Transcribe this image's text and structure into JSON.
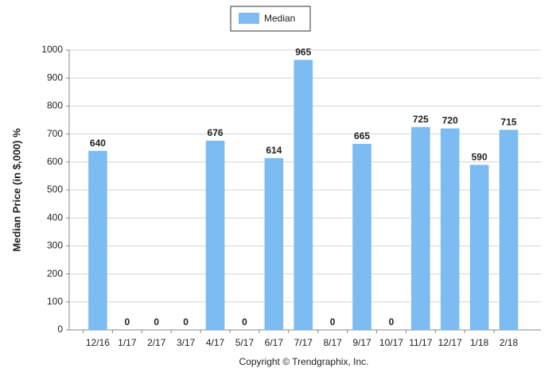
{
  "chart_data": {
    "type": "bar",
    "y_label": "Median Price (in $,000) %",
    "source": "Copyright © Trendgraphix, Inc.",
    "categories": [
      "12/16",
      "1/17",
      "2/17",
      "3/17",
      "4/17",
      "5/17",
      "6/17",
      "7/17",
      "8/17",
      "9/17",
      "10/17",
      "11/17",
      "12/17",
      "1/18",
      "2/18"
    ],
    "series": [
      {
        "name": "Median",
        "color": "#7cbcf2",
        "values": [
          640,
          0,
          0,
          0,
          676,
          0,
          614,
          965,
          0,
          665,
          0,
          725,
          720,
          590,
          715
        ]
      }
    ],
    "ylim": [
      0,
      1000
    ],
    "yticks": [
      0,
      100,
      200,
      300,
      400,
      500,
      600,
      700,
      800,
      900,
      1000
    ],
    "grid": true,
    "legend": "top",
    "data_labels": true
  }
}
